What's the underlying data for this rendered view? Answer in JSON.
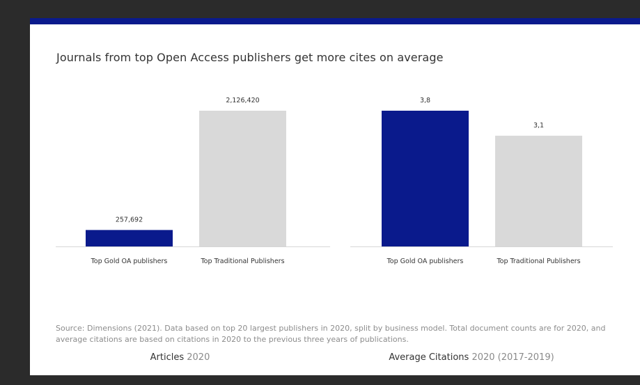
{
  "title": "Journals from top Open Access publishers get more cites on average",
  "colors": {
    "accent": "#0a1a8c",
    "gold_oa": "#0a1a8c",
    "traditional": "#d9d9d9",
    "background": "#2b2b2b"
  },
  "panels": [
    {
      "caption_main": "Articles",
      "caption_sub": "2020"
    },
    {
      "caption_main": "Average Citations",
      "caption_sub": "2020 (2017-2019)"
    }
  ],
  "chart_data": [
    {
      "type": "bar",
      "categories": [
        "Top Gold OA publishers",
        "Top Traditional Publishers"
      ],
      "values": [
        257692,
        2126420
      ],
      "labels": [
        "257,692",
        "2,126,420"
      ],
      "title": "Articles 2020",
      "ylim": [
        0,
        2126420
      ],
      "grid": false,
      "legend": "none"
    },
    {
      "type": "bar",
      "categories": [
        "Top Gold OA publishers",
        "Top Traditional Publishers"
      ],
      "values": [
        3.8,
        3.1
      ],
      "labels": [
        "3,8",
        "3,1"
      ],
      "title": "Average Citations 2020 (2017-2019)",
      "ylim": [
        0,
        3.8
      ],
      "grid": false,
      "legend": "none"
    }
  ],
  "footnote": "Source: Dimensions (2021). Data based on top 20 largest publishers in 2020, split by business model. Total document counts are for 2020, and average citations are based on citations in 2020 to the previous three years of publications."
}
